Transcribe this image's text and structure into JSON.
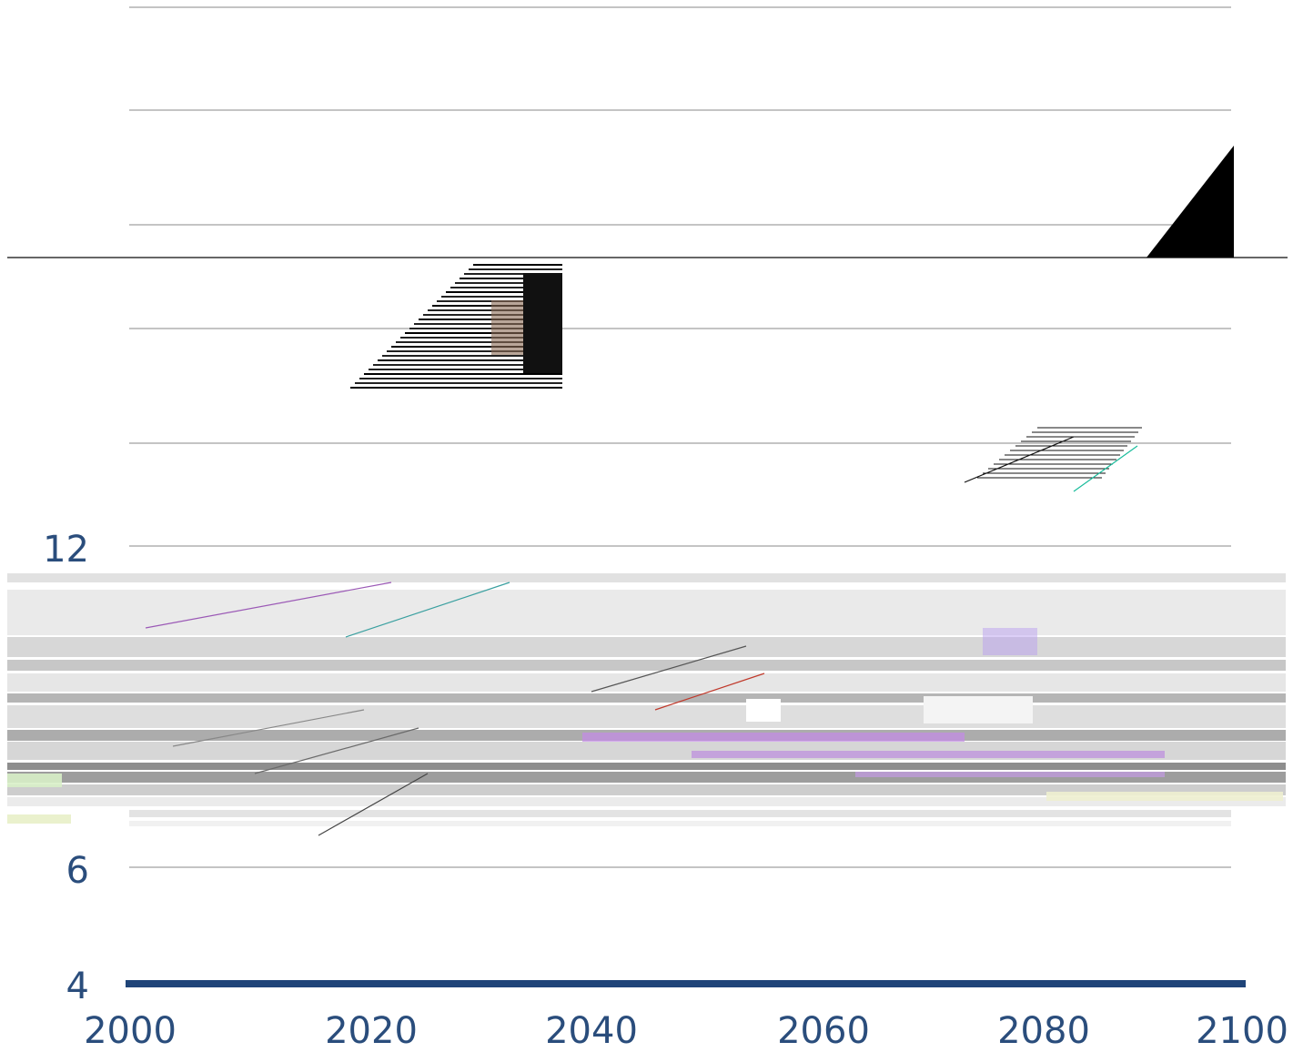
{
  "chart_data": {
    "type": "line",
    "title": "",
    "xlabel": "",
    "ylabel": "",
    "x_ticks": [
      "2000",
      "2020",
      "2040",
      "2060",
      "2080",
      "2100"
    ],
    "y_ticks_visible": [
      "4",
      "6",
      "12"
    ],
    "xlim": [
      2000,
      2100
    ],
    "y_gridlines": [
      6,
      8,
      10,
      12,
      14,
      16,
      18,
      20,
      22
    ],
    "grid": true,
    "legend": "none",
    "colors": {
      "tick_text": "#2a4d7c",
      "axis_baseline": "#1f4478",
      "grid": "#888888"
    },
    "note_visible_artifacts": "image is heavily corrupted; series data not legible"
  }
}
